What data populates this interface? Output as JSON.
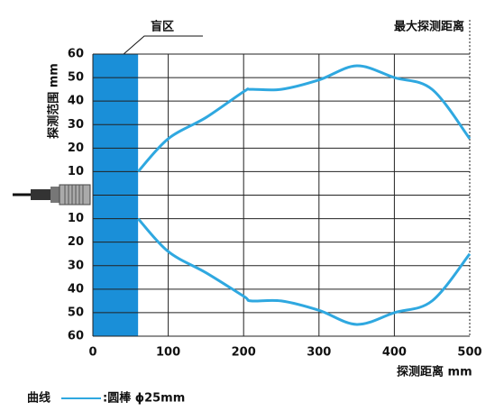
{
  "chart_data": {
    "type": "line",
    "x_label": "探测距离 mm",
    "y_label": "探测范围 mm",
    "annotations": {
      "blind_zone": "盲区",
      "max_distance": "最大探测距离"
    },
    "blind_zone": [
      0,
      60
    ],
    "blind_color": "#1a8fd8",
    "legend_title": "曲线",
    "series": [
      {
        "name": ":圆棒 ϕ25mm",
        "color": "#2fa8e0",
        "x": [
          60,
          100,
          150,
          200,
          210,
          250,
          300,
          350,
          400,
          450,
          500
        ],
        "values": [
          10,
          24,
          33,
          44,
          45,
          45,
          49,
          55,
          50,
          45,
          24
        ],
        "values_lower": [
          -10,
          -24,
          -33,
          -43,
          -45,
          -45,
          -49,
          -55,
          -50,
          -45,
          -25
        ]
      }
    ],
    "xlim": [
      0,
      500
    ],
    "xticks": [
      0,
      100,
      200,
      300,
      400,
      500
    ],
    "ylim": [
      -60,
      60
    ],
    "yticks": [
      60,
      50,
      40,
      30,
      20,
      10,
      {
        "value": -10,
        "label": "10"
      },
      {
        "value": -20,
        "label": "20"
      },
      {
        "value": -30,
        "label": "30"
      },
      {
        "value": -40,
        "label": "40"
      },
      {
        "value": -50,
        "label": "50"
      },
      {
        "value": -60,
        "label": "60"
      }
    ],
    "grid": true
  }
}
